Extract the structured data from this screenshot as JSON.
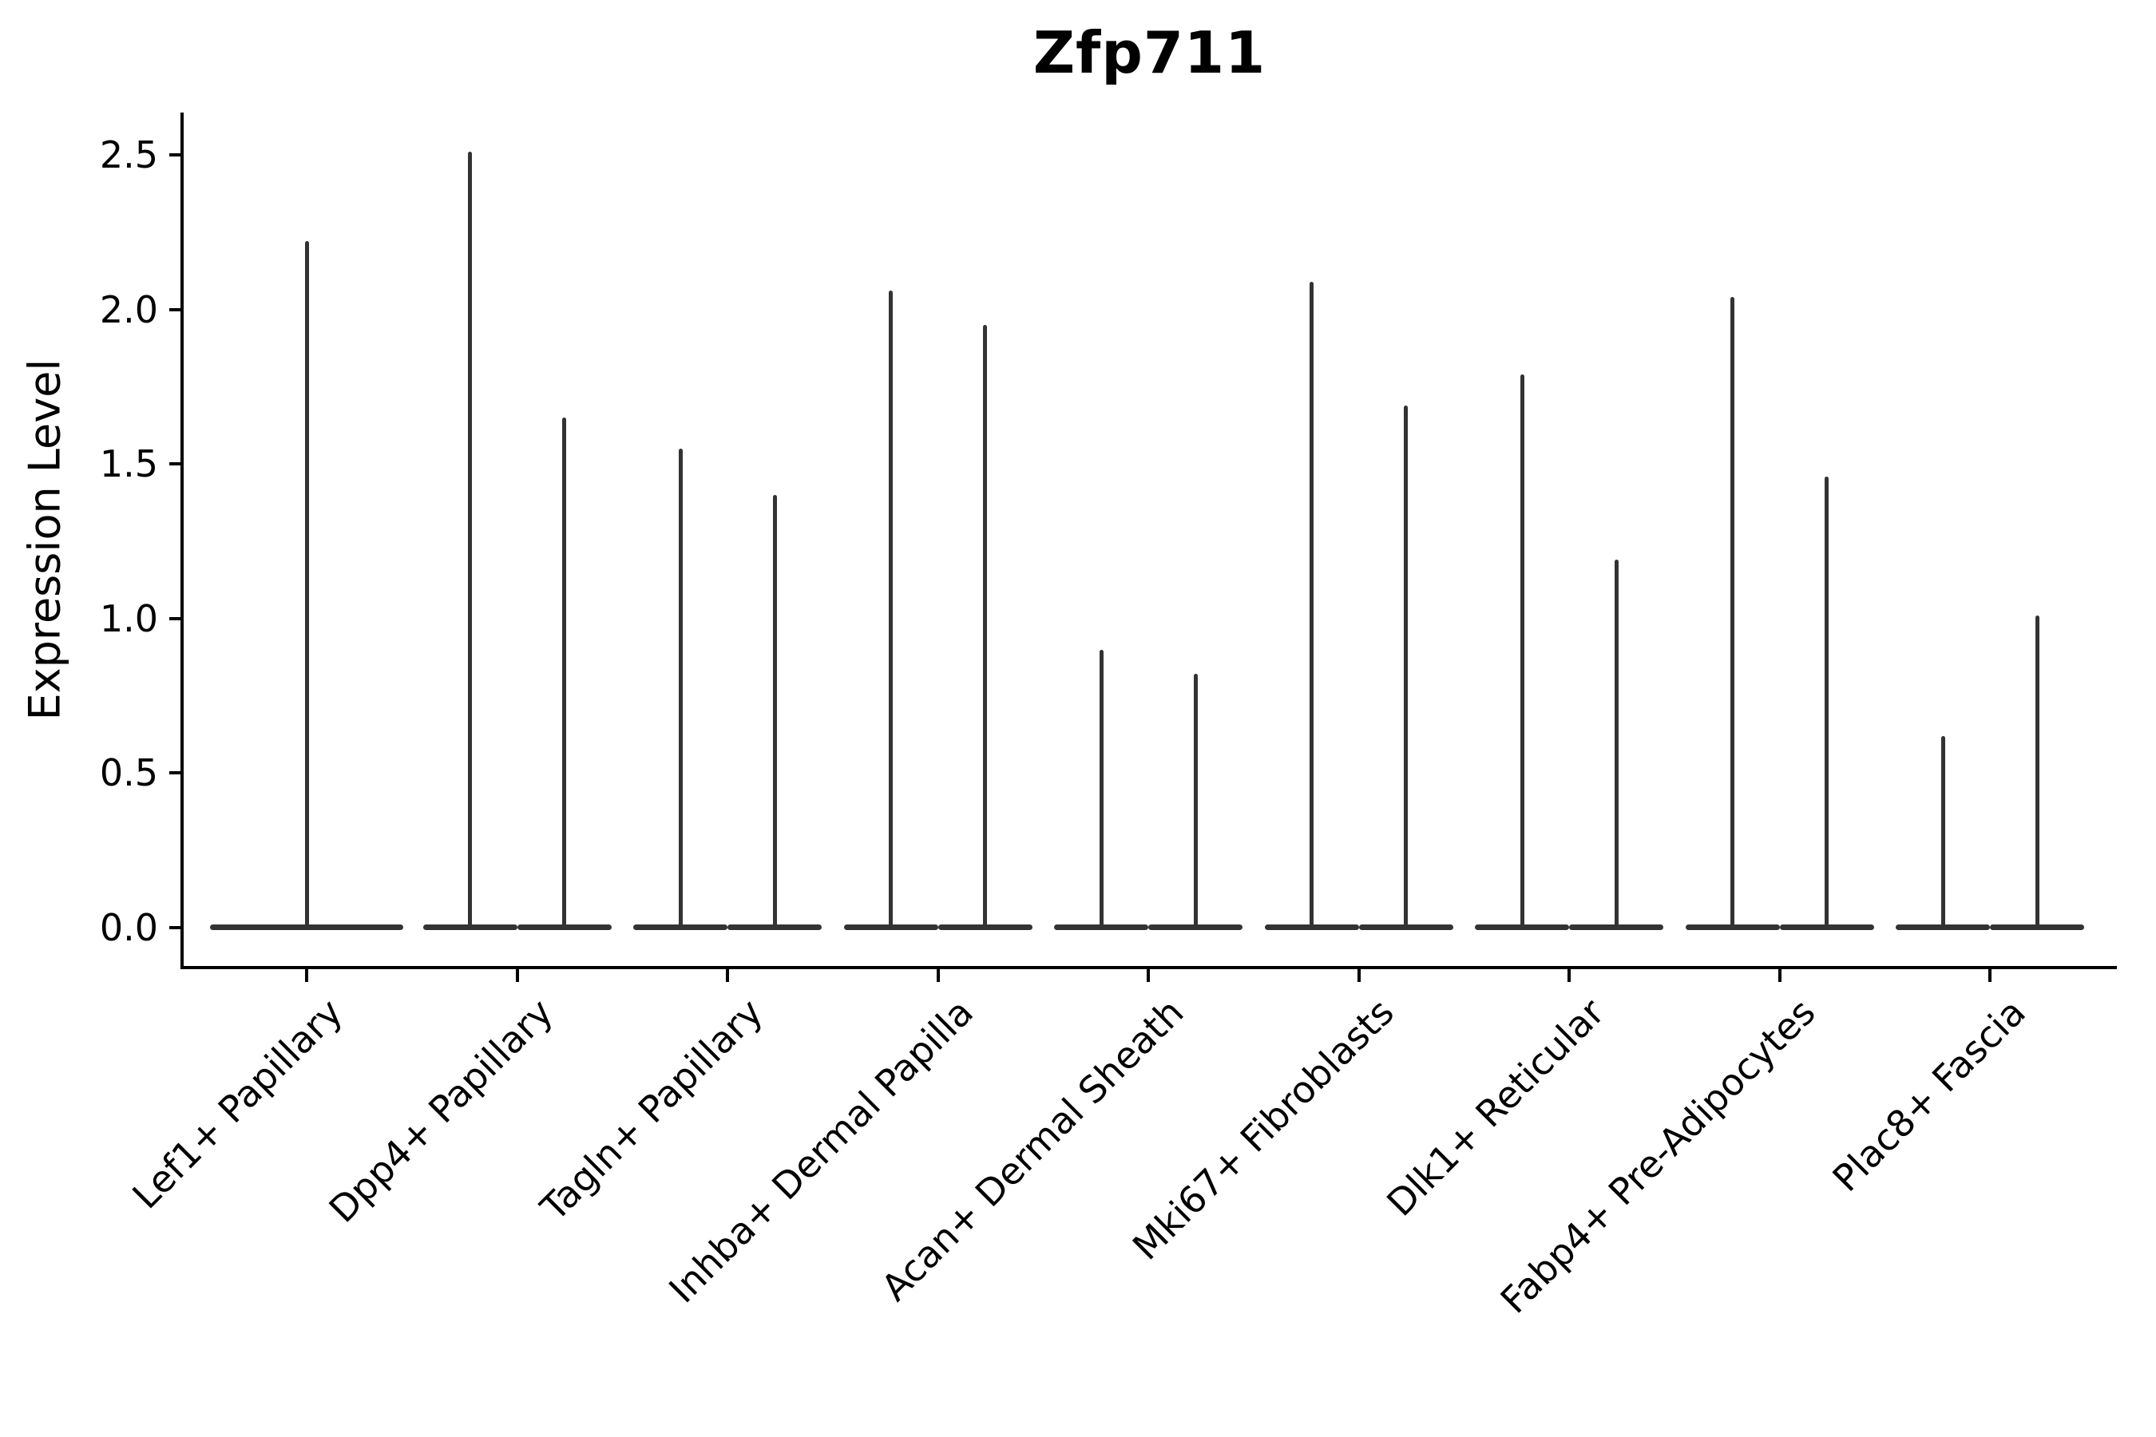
{
  "title": "Zfp711",
  "y_axis": {
    "label": "Expression Level",
    "tick_labels": [
      "0.0",
      "0.5",
      "1.0",
      "1.5",
      "2.0",
      "2.5"
    ]
  },
  "colors": {
    "violin": "#333333",
    "axis": "#000000",
    "background": "#ffffff",
    "text": "#000000"
  },
  "chart_data": {
    "type": "violin",
    "title": "Zfp711",
    "xlabel": "",
    "ylabel": "Expression Level",
    "ylim": [
      -0.12,
      2.64
    ],
    "yticks": [
      0.0,
      0.5,
      1.0,
      1.5,
      2.0,
      2.5
    ],
    "grid": false,
    "legend": null,
    "shape_note": "Each violin is collapsed to a thin vertical spike rising from 0 to its maximum, with a wide flat bulge of density at expression level 0. All categories except the first contain two side-by-side violins.",
    "categories": [
      "Lef1+ Papillary",
      "Dpp4+ Papillary",
      "Tagln+ Papillary",
      "Inhba+ Dermal Papilla",
      "Acan+ Dermal Sheath",
      "Mki67+ Fibroblasts",
      "Dlk1+ Reticular",
      "Fabp4+ Pre-Adipocytes",
      "Plac8+ Fascia"
    ],
    "groups": [
      {
        "category": "Lef1+ Papillary",
        "violin_maxima": [
          2.22
        ],
        "violin_minimum": 0.0
      },
      {
        "category": "Dpp4+ Papillary",
        "violin_maxima": [
          2.51,
          1.65
        ],
        "violin_minimum": 0.0
      },
      {
        "category": "Tagln+ Papillary",
        "violin_maxima": [
          1.55,
          1.4
        ],
        "violin_minimum": 0.0
      },
      {
        "category": "Inhba+ Dermal Papilla",
        "violin_maxima": [
          2.06,
          1.95
        ],
        "violin_minimum": 0.0
      },
      {
        "category": "Acan+ Dermal Sheath",
        "violin_maxima": [
          0.9,
          0.82
        ],
        "violin_minimum": 0.0
      },
      {
        "category": "Mki67+ Fibroblasts",
        "violin_maxima": [
          2.09,
          1.69
        ],
        "violin_minimum": 0.0
      },
      {
        "category": "Dlk1+ Reticular",
        "violin_maxima": [
          1.79,
          1.19
        ],
        "violin_minimum": 0.0
      },
      {
        "category": "Fabp4+ Pre-Adipocytes",
        "violin_maxima": [
          2.04,
          1.46
        ],
        "violin_minimum": 0.0
      },
      {
        "category": "Plac8+ Fascia",
        "violin_maxima": [
          0.62,
          1.01
        ],
        "violin_minimum": 0.0
      }
    ]
  }
}
